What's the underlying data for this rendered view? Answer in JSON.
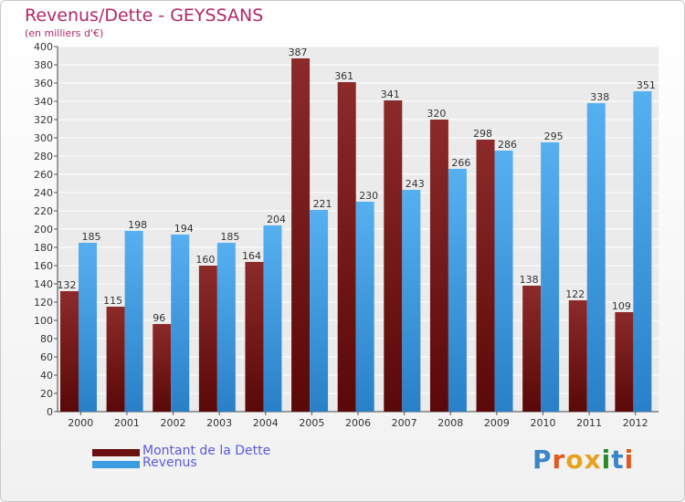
{
  "brand": {
    "letters": [
      "P",
      "r",
      "o",
      "x",
      "i",
      "t",
      "i"
    ],
    "colors": [
      "#3a86c8",
      "#e05a1e",
      "#e8a31c",
      "#e8a31c",
      "#2a8a2a",
      "#3a86c8",
      "#e05a1e"
    ]
  },
  "chart_data": {
    "type": "bar",
    "title": "Revenus/Dette - GEYSSANS",
    "subtitle": "(en milliers d'€)",
    "categories": [
      "2000",
      "2001",
      "2002",
      "2003",
      "2004",
      "2005",
      "2006",
      "2007",
      "2008",
      "2009",
      "2010",
      "2011",
      "2012"
    ],
    "series": [
      {
        "name": "Montant de la Dette",
        "color": "#7a1a1a",
        "values": [
          132,
          115,
          96,
          160,
          164,
          387,
          361,
          341,
          320,
          298,
          138,
          122,
          109
        ],
        "labels": [
          "132",
          "115",
          "96",
          "160",
          "164",
          "387",
          "361",
          "341",
          "320",
          "298",
          "138",
          "122",
          "109"
        ]
      },
      {
        "name": "Revenus",
        "color": "#4aa3e6",
        "values": [
          185,
          198,
          194,
          185,
          204,
          221,
          230,
          243,
          266,
          286,
          295,
          338,
          351
        ],
        "labels": [
          "185",
          "198",
          "194",
          "185",
          "204",
          "221",
          "230",
          "243",
          "266",
          "286",
          "295",
          "338",
          "351"
        ]
      }
    ],
    "ylim": [
      0,
      400
    ],
    "ytick_step": 20,
    "yticks": [
      "0",
      "20",
      "40",
      "60",
      "80",
      "100",
      "120",
      "140",
      "160",
      "180",
      "200",
      "220",
      "240",
      "260",
      "280",
      "300",
      "320",
      "340",
      "360",
      "380",
      "400"
    ],
    "grid": true,
    "legend_position": "bottom-left"
  }
}
